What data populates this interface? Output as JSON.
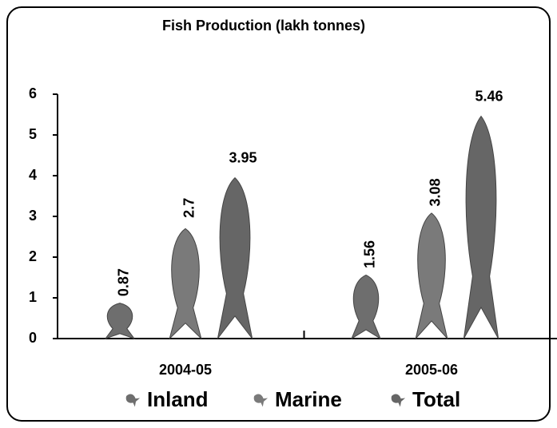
{
  "chart_data": {
    "type": "bar",
    "title": "Fish Production (lakh tonnes)",
    "categories": [
      "2004-05",
      "2005-06"
    ],
    "series": [
      {
        "name": "Inland",
        "color": "#6e6e6e",
        "values": [
          0.87,
          1.56
        ]
      },
      {
        "name": "Marine",
        "color": "#7a7a7a",
        "values": [
          2.7,
          3.08
        ]
      },
      {
        "name": "Total",
        "color": "#666666",
        "values": [
          3.95,
          5.46
        ]
      }
    ],
    "ylim": [
      0,
      6
    ],
    "yticks": [
      0,
      1,
      2,
      3,
      4,
      5,
      6
    ],
    "grid": false,
    "legend": "bottom"
  }
}
